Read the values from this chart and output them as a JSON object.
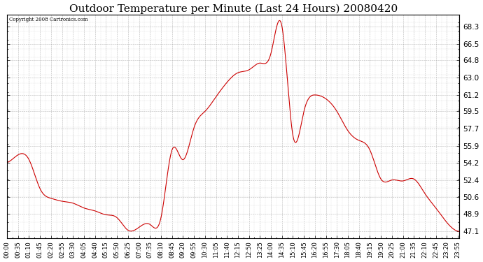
{
  "title": "Outdoor Temperature per Minute (Last 24 Hours) 20080420",
  "copyright": "Copyright 2008 Cartronics.com",
  "background_color": "#ffffff",
  "line_color": "#cc0000",
  "grid_color": "#888888",
  "yticks": [
    47.1,
    48.9,
    50.6,
    52.4,
    54.2,
    55.9,
    57.7,
    59.5,
    61.2,
    63.0,
    64.8,
    66.5,
    68.3
  ],
  "ylim": [
    46.4,
    69.5
  ],
  "xlabel_fontsize": 6.0,
  "ylabel_fontsize": 7.5,
  "title_fontsize": 11,
  "x_labels": [
    "00:00",
    "00:35",
    "01:10",
    "01:45",
    "02:20",
    "02:55",
    "03:30",
    "04:05",
    "04:40",
    "05:15",
    "05:50",
    "06:25",
    "07:00",
    "07:35",
    "08:10",
    "08:45",
    "09:20",
    "09:55",
    "10:30",
    "11:05",
    "11:40",
    "12:15",
    "12:50",
    "13:25",
    "14:00",
    "14:35",
    "15:10",
    "15:45",
    "16:20",
    "16:55",
    "17:30",
    "18:05",
    "18:40",
    "19:15",
    "19:50",
    "20:25",
    "21:00",
    "21:35",
    "22:10",
    "22:45",
    "23:20",
    "23:55"
  ],
  "key_points": {
    "00:00": 54.2,
    "00:35": 55.0,
    "01:10": 54.5,
    "01:45": 51.5,
    "02:20": 50.5,
    "02:55": 50.2,
    "03:30": 50.0,
    "04:05": 49.5,
    "04:40": 49.2,
    "05:15": 48.8,
    "05:50": 48.5,
    "06:25": 47.2,
    "07:00": 47.5,
    "07:35": 47.8,
    "08:10": 48.5,
    "08:45": 55.5,
    "09:20": 54.5,
    "09:55": 57.8,
    "10:30": 59.5,
    "11:05": 61.0,
    "11:40": 62.5,
    "12:15": 63.5,
    "12:50": 63.8,
    "13:25": 64.5,
    "14:00": 65.5,
    "14:35": 68.3,
    "15:10": 57.0,
    "15:45": 59.5,
    "16:20": 61.2,
    "16:55": 60.8,
    "17:30": 59.5,
    "18:05": 57.5,
    "18:40": 56.5,
    "19:15": 55.5,
    "19:50": 52.5,
    "20:25": 52.4,
    "21:00": 52.3,
    "21:35": 52.5,
    "22:10": 51.0,
    "22:45": 49.5,
    "23:20": 48.0,
    "23:55": 47.1
  }
}
